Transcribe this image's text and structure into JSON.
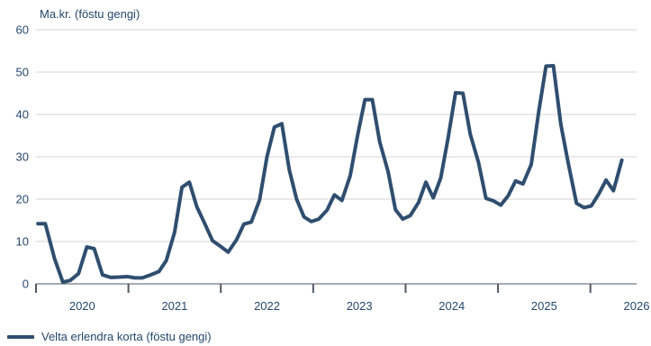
{
  "chart_data": {
    "type": "line",
    "title": "",
    "ylabel": "Ma.kr. (föstu gengi)",
    "xlabel": "",
    "ylim": [
      0,
      60
    ],
    "yticks": [
      0,
      10,
      20,
      30,
      40,
      50,
      60
    ],
    "xlim": [
      2019.5,
      2026.0
    ],
    "year_labels": [
      "2020",
      "2021",
      "2022",
      "2023",
      "2024",
      "2025",
      "2026"
    ],
    "year_label_positions": [
      2020.0,
      2021.0,
      2022.0,
      2023.0,
      2024.0,
      2025.0,
      2026.0
    ],
    "year_boundaries": [
      2019.5,
      2020.5,
      2021.5,
      2022.5,
      2023.5,
      2024.5,
      2025.5
    ],
    "grid": true,
    "legend_position": "bottom-left",
    "series": [
      {
        "name": "Velta erlendra korta (föstu gengi)",
        "color": "#2f4e6f",
        "points": [
          [
            2019.52,
            14.2
          ],
          [
            2019.6,
            14.2
          ],
          [
            2019.7,
            6.0
          ],
          [
            2019.79,
            0.4
          ],
          [
            2019.87,
            0.8
          ],
          [
            2019.96,
            2.4
          ],
          [
            2020.05,
            8.7
          ],
          [
            2020.13,
            8.3
          ],
          [
            2020.22,
            2.1
          ],
          [
            2020.31,
            1.5
          ],
          [
            2020.4,
            1.6
          ],
          [
            2020.49,
            1.7
          ],
          [
            2020.57,
            1.4
          ],
          [
            2020.65,
            1.4
          ],
          [
            2020.74,
            2.1
          ],
          [
            2020.83,
            2.9
          ],
          [
            2020.91,
            5.5
          ],
          [
            2021.0,
            12.2
          ],
          [
            2021.08,
            22.8
          ],
          [
            2021.16,
            24.0
          ],
          [
            2021.24,
            18.2
          ],
          [
            2021.32,
            14.5
          ],
          [
            2021.41,
            10.2
          ],
          [
            2021.5,
            8.8
          ],
          [
            2021.58,
            7.5
          ],
          [
            2021.67,
            10.4
          ],
          [
            2021.75,
            14.1
          ],
          [
            2021.83,
            14.6
          ],
          [
            2021.92,
            19.8
          ],
          [
            2022.0,
            30.0
          ],
          [
            2022.08,
            37.0
          ],
          [
            2022.16,
            37.8
          ],
          [
            2022.24,
            27.0
          ],
          [
            2022.32,
            20.0
          ],
          [
            2022.4,
            15.8
          ],
          [
            2022.48,
            14.7
          ],
          [
            2022.56,
            15.3
          ],
          [
            2022.65,
            17.4
          ],
          [
            2022.73,
            21.0
          ],
          [
            2022.81,
            19.7
          ],
          [
            2022.9,
            25.5
          ],
          [
            2022.98,
            35.0
          ],
          [
            2023.06,
            43.5
          ],
          [
            2023.14,
            43.5
          ],
          [
            2023.22,
            33.5
          ],
          [
            2023.31,
            26.5
          ],
          [
            2023.39,
            17.5
          ],
          [
            2023.47,
            15.3
          ],
          [
            2023.55,
            16.1
          ],
          [
            2023.64,
            19.2
          ],
          [
            2023.72,
            24.0
          ],
          [
            2023.8,
            20.3
          ],
          [
            2023.88,
            25.0
          ],
          [
            2023.96,
            34.5
          ],
          [
            2024.04,
            45.1
          ],
          [
            2024.12,
            45.0
          ],
          [
            2024.2,
            35.3
          ],
          [
            2024.29,
            28.6
          ],
          [
            2024.37,
            20.2
          ],
          [
            2024.45,
            19.6
          ],
          [
            2024.53,
            18.6
          ],
          [
            2024.61,
            20.8
          ],
          [
            2024.69,
            24.3
          ],
          [
            2024.77,
            23.6
          ],
          [
            2024.86,
            28.2
          ],
          [
            2024.94,
            40.5
          ],
          [
            2025.02,
            51.4
          ],
          [
            2025.1,
            51.5
          ],
          [
            2025.18,
            37.6
          ],
          [
            2025.26,
            28.5
          ],
          [
            2025.35,
            19.0
          ],
          [
            2025.43,
            18.0
          ],
          [
            2025.51,
            18.4
          ],
          [
            2025.59,
            21.2
          ],
          [
            2025.67,
            24.5
          ],
          [
            2025.75,
            22.0
          ],
          [
            2025.84,
            29.2
          ]
        ]
      }
    ]
  }
}
